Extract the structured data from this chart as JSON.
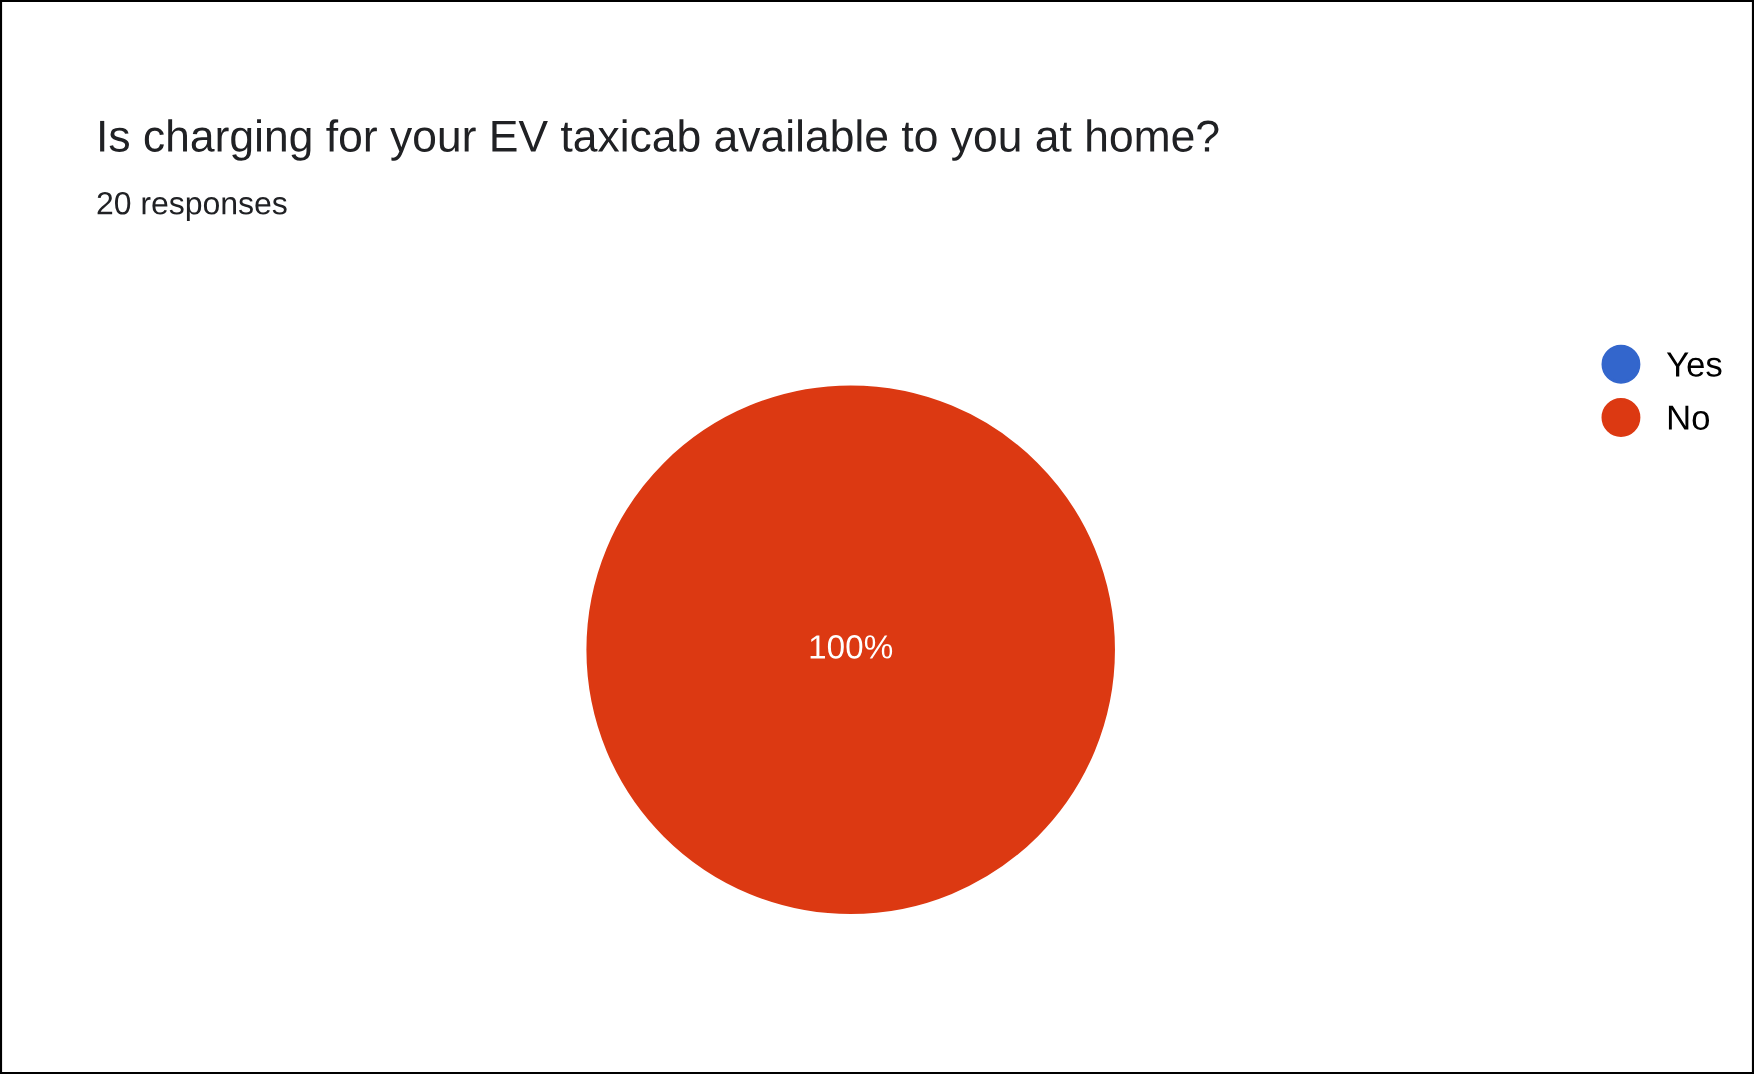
{
  "chart_data": {
    "type": "pie",
    "title": "Is charging for your EV taxicab available to you at home?",
    "subtitle": "20 responses",
    "categories": [
      "Yes",
      "No"
    ],
    "values": [
      0,
      100
    ],
    "colors": [
      "#3366cc",
      "#dc3912"
    ],
    "value_labels": [
      null,
      "100%"
    ],
    "legend": "top right"
  }
}
